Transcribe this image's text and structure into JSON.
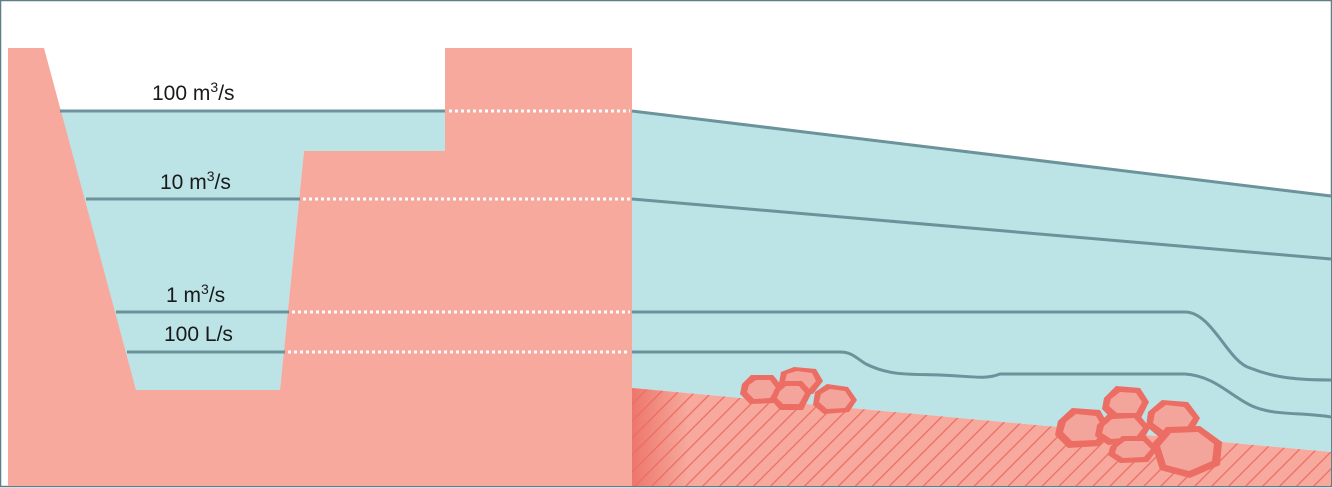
{
  "flow_levels": [
    {
      "value": "100",
      "unit": "m",
      "exp": "3",
      "suffix": "/s"
    },
    {
      "value": "10",
      "unit": "m",
      "exp": "3",
      "suffix": "/s"
    },
    {
      "value": "1",
      "unit": "m",
      "exp": "3",
      "suffix": "/s"
    },
    {
      "value": "100",
      "unit": "L/s",
      "exp": "",
      "suffix": ""
    }
  ],
  "colors": {
    "bank": "#f6a99c",
    "water": "#bce3e5",
    "water_line": "#6b939b",
    "dotted_line": "#ffffff",
    "rock_outer": "#ec6d63",
    "rock_inner": "#f4a59b",
    "bed_hatch": "#ec6d63",
    "frame": "#5f7f86"
  }
}
